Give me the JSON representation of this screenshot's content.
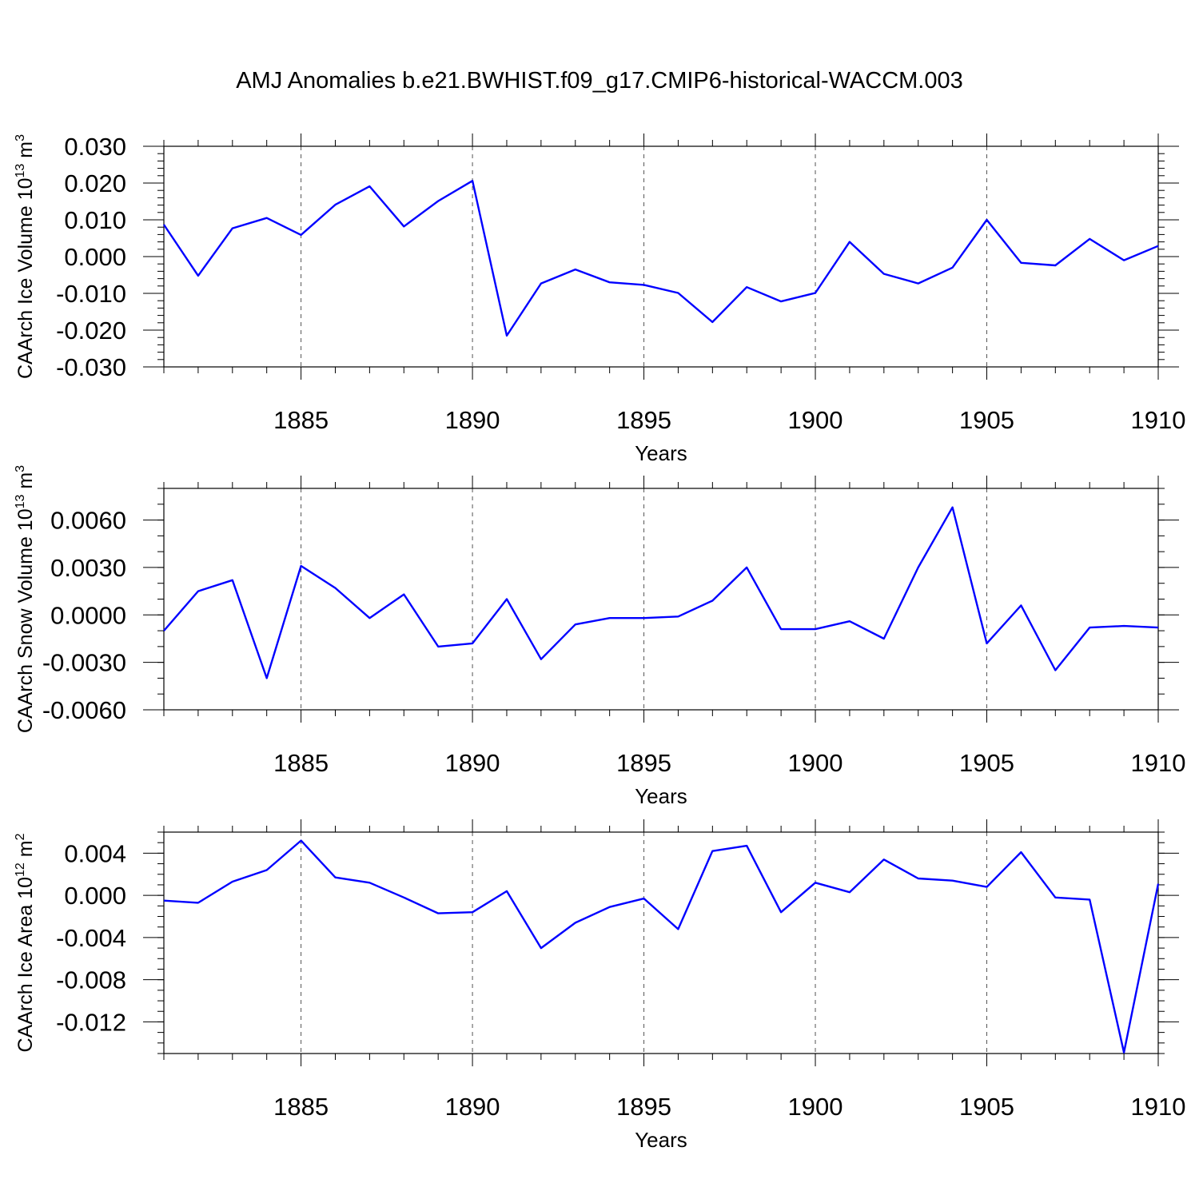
{
  "title": "AMJ Anomalies b.e21.BWHIST.f09_g17.CMIP6-historical-WACCM.003",
  "line_color": "#0000ff",
  "chart_data": [
    {
      "type": "line",
      "title": "",
      "xlabel": "Years",
      "ylabel": "CAArch Ice Volume 10",
      "ylabel_exp": "13",
      "ylabel_unit": " m",
      "ylabel_unit_exp": "3",
      "xlim": [
        1881,
        1910
      ],
      "ylim": [
        -0.03,
        0.03
      ],
      "xticks": [
        1885,
        1890,
        1895,
        1900,
        1905,
        1910
      ],
      "xtick_labels": [
        "1885",
        "1890",
        "1895",
        "1900",
        "1905",
        "1910"
      ],
      "yticks": [
        -0.03,
        -0.02,
        -0.01,
        0.0,
        0.01,
        0.02,
        0.03
      ],
      "ytick_labels": [
        "-0.030",
        "-0.020",
        "-0.010",
        "0.000",
        "0.010",
        "0.020",
        "0.030"
      ],
      "ytick_minor_step": 0.002,
      "grid": "vertical-dashed",
      "x": [
        1881,
        1882,
        1883,
        1884,
        1885,
        1886,
        1887,
        1888,
        1889,
        1890,
        1891,
        1892,
        1893,
        1894,
        1895,
        1896,
        1897,
        1898,
        1899,
        1900,
        1901,
        1902,
        1903,
        1904,
        1905,
        1906,
        1907,
        1908,
        1909,
        1910
      ],
      "series": [
        {
          "name": "CAArch Ice Volume",
          "values": [
            0.0087,
            -0.0052,
            0.0077,
            0.0105,
            0.0059,
            0.0141,
            0.0191,
            0.0082,
            0.0151,
            0.0206,
            -0.0215,
            -0.0073,
            -0.0035,
            -0.007,
            -0.0077,
            -0.0099,
            -0.0178,
            -0.0083,
            -0.0122,
            -0.0099,
            0.004,
            -0.0047,
            -0.0073,
            -0.003,
            0.01,
            -0.0017,
            -0.0024,
            0.0048,
            -0.001,
            0.0029
          ]
        }
      ]
    },
    {
      "type": "line",
      "title": "",
      "xlabel": "Years",
      "ylabel": "CAArch Snow Volume 10",
      "ylabel_exp": "13",
      "ylabel_unit": " m",
      "ylabel_unit_exp": "3",
      "xlim": [
        1881,
        1910
      ],
      "ylim": [
        -0.006,
        0.008
      ],
      "xticks": [
        1885,
        1890,
        1895,
        1900,
        1905,
        1910
      ],
      "xtick_labels": [
        "1885",
        "1890",
        "1895",
        "1900",
        "1905",
        "1910"
      ],
      "yticks": [
        -0.006,
        -0.003,
        0.0,
        0.003,
        0.006
      ],
      "ytick_labels": [
        "-0.0060",
        "-0.0030",
        "0.0000",
        "0.0030",
        "0.0060"
      ],
      "ytick_minor_step": 0.001,
      "grid": "vertical-dashed",
      "x": [
        1881,
        1882,
        1883,
        1884,
        1885,
        1886,
        1887,
        1888,
        1889,
        1890,
        1891,
        1892,
        1893,
        1894,
        1895,
        1896,
        1897,
        1898,
        1899,
        1900,
        1901,
        1902,
        1903,
        1904,
        1905,
        1906,
        1907,
        1908,
        1909,
        1910
      ],
      "series": [
        {
          "name": "CAArch Snow Volume",
          "values": [
            -0.001,
            0.0015,
            0.0022,
            -0.004,
            0.0031,
            0.0017,
            -0.0002,
            0.0013,
            -0.002,
            -0.0018,
            0.001,
            -0.0028,
            -0.0006,
            -0.0002,
            -0.0002,
            -0.0001,
            0.0009,
            0.003,
            -0.0009,
            -0.0009,
            -0.0004,
            -0.0015,
            0.003,
            0.0068,
            -0.0018,
            0.0006,
            -0.0035,
            -0.0008,
            -0.0007,
            -0.0008
          ]
        }
      ]
    },
    {
      "type": "line",
      "title": "",
      "xlabel": "Years",
      "ylabel": "CAArch Ice Area 10",
      "ylabel_exp": "12",
      "ylabel_unit": " m",
      "ylabel_unit_exp": "2",
      "xlim": [
        1881,
        1910
      ],
      "ylim": [
        -0.015,
        0.006
      ],
      "xticks": [
        1885,
        1890,
        1895,
        1900,
        1905,
        1910
      ],
      "xtick_labels": [
        "1885",
        "1890",
        "1895",
        "1900",
        "1905",
        "1910"
      ],
      "yticks": [
        -0.012,
        -0.008,
        -0.004,
        0.0,
        0.004
      ],
      "ytick_labels": [
        "-0.012",
        "-0.008",
        "-0.004",
        "0.000",
        "0.004"
      ],
      "ytick_minor_step": 0.001,
      "grid": "vertical-dashed",
      "x": [
        1881,
        1882,
        1883,
        1884,
        1885,
        1886,
        1887,
        1888,
        1889,
        1890,
        1891,
        1892,
        1893,
        1894,
        1895,
        1896,
        1897,
        1898,
        1899,
        1900,
        1901,
        1902,
        1903,
        1904,
        1905,
        1906,
        1907,
        1908,
        1909,
        1910
      ],
      "series": [
        {
          "name": "CAArch Ice Area",
          "values": [
            -0.0005,
            -0.0007,
            0.0013,
            0.0024,
            0.0052,
            0.0017,
            0.0012,
            -0.0002,
            -0.0017,
            -0.0016,
            0.0004,
            -0.005,
            -0.0026,
            -0.0011,
            -0.0003,
            -0.0032,
            0.0042,
            0.0047,
            -0.0016,
            0.0012,
            0.0003,
            0.0034,
            0.0016,
            0.0014,
            0.0008,
            0.0041,
            -0.0002,
            -0.0004,
            -0.0149,
            0.0011
          ]
        }
      ]
    }
  ]
}
